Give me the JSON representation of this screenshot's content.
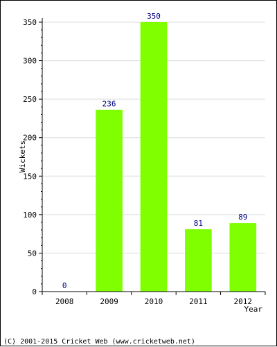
{
  "chart_data": {
    "type": "bar",
    "categories": [
      "2008",
      "2009",
      "2010",
      "2011",
      "2012"
    ],
    "values": [
      0,
      236,
      350,
      81,
      89
    ],
    "title": "",
    "xlabel": "Year",
    "ylabel": "Wickets",
    "ylim": [
      0,
      350
    ],
    "yticks": [
      0,
      50,
      100,
      150,
      200,
      250,
      300,
      350
    ],
    "grid": true,
    "bar_color": "#80ff00",
    "value_label_color": "#000080"
  },
  "footer": {
    "copyright": "(C) 2001-2015 Cricket Web (www.cricketweb.net)"
  }
}
